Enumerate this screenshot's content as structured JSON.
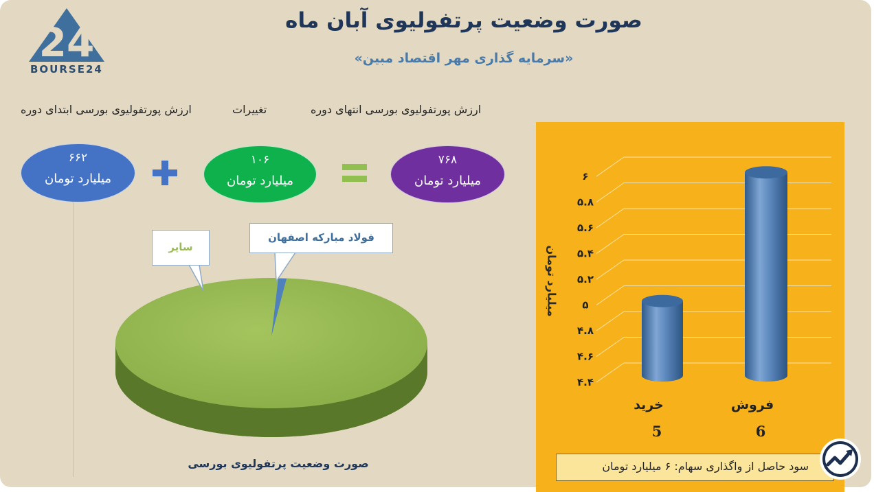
{
  "header": {
    "title": "صورت وضعیت پرتفولیوی آبان ماه",
    "subtitle": "«سرمایه گذاری مهر اقتصاد مبین»"
  },
  "logo": {
    "mark": "24",
    "text": "BOURSE24"
  },
  "summary": {
    "end_label": "ارزش پورتفولیوی بورسی انتهای دوره",
    "change_label": "تغییرات",
    "start_label": "ارزش پورتفولیوی بورسی ابتدای دوره",
    "end_value": "۷۶۸",
    "change_value": "۱۰۶",
    "start_value": "۶۶۲",
    "unit": "میلیارد تومان",
    "colors": {
      "end": "#6f2f9f",
      "change": "#0fb14d",
      "start": "#4472c4"
    }
  },
  "chart_data": [
    {
      "type": "pie",
      "title": "صورت وضعیت پرتفولیوی بورسی",
      "labels": [
        "سایر",
        "فولاد مبارکه اصفهان"
      ],
      "values": [
        98.5,
        1.5
      ],
      "colors": [
        "#9bbb59",
        "#4f81bd"
      ],
      "style": "3d"
    },
    {
      "type": "bar",
      "style": "3d-cylinder",
      "categories": [
        "خرید",
        "فروش"
      ],
      "values": [
        5,
        6
      ],
      "value_labels": [
        "5",
        "6"
      ],
      "ylabel": "میلیارد تومان",
      "ylim": [
        4.4,
        6
      ],
      "yticks": [
        "۴.۴",
        "۴.۶",
        "۴.۸",
        "۵",
        "۵.۲",
        "۵.۴",
        "۵.۶",
        "۵.۸",
        "۶"
      ],
      "grid": true,
      "background": "#f7b21b",
      "bar_color": "#4f81bd"
    }
  ],
  "footer": {
    "banner": "سود حاصل از واگذاری سهام: ۶ میلیارد تومان"
  },
  "icons": {
    "badge": "trend-chart-icon"
  }
}
